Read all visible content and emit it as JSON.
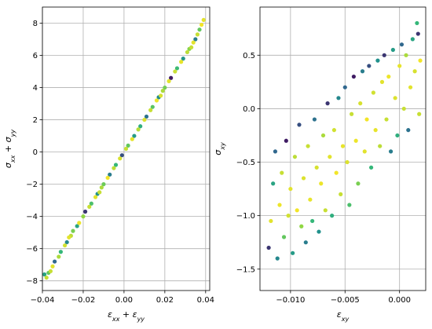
{
  "chart_data": [
    {
      "type": "scatter",
      "title": "",
      "xlabel": "εxx + εyy",
      "ylabel": "σxx + σyy",
      "xlim": [
        -0.04,
        0.042
      ],
      "ylim": [
        -8.6,
        9.0
      ],
      "xticks": [
        -0.04,
        -0.02,
        0.0,
        0.02,
        0.04
      ],
      "xtick_labels": [
        "−0.04",
        "−0.02",
        "0.00",
        "0.02",
        "0.04"
      ],
      "yticks": [
        -8,
        -6,
        -4,
        -2,
        0,
        2,
        4,
        6,
        8
      ],
      "ytick_labels": [
        "−8",
        "−6",
        "−4",
        "−2",
        "0",
        "2",
        "4",
        "6",
        "8"
      ],
      "grid": true,
      "color_scale": [
        "#440154",
        "#31688e",
        "#21918c",
        "#35b779",
        "#90d743",
        "#fde725"
      ],
      "points": [
        [
          -0.038,
          -7.8,
          0.9
        ],
        [
          -0.037,
          -7.5,
          0.7
        ],
        [
          -0.035,
          -7.1,
          0.95
        ],
        [
          -0.034,
          -6.8,
          0.2
        ],
        [
          -0.032,
          -6.5,
          0.85
        ],
        [
          -0.031,
          -6.2,
          0.6
        ],
        [
          -0.029,
          -5.8,
          0.92
        ],
        [
          -0.028,
          -5.6,
          0.35
        ],
        [
          -0.026,
          -5.2,
          0.88
        ],
        [
          -0.025,
          -4.9,
          0.75
        ],
        [
          -0.023,
          -4.6,
          0.5
        ],
        [
          -0.022,
          -4.4,
          0.97
        ],
        [
          -0.02,
          -4.0,
          0.8
        ],
        [
          -0.019,
          -3.7,
          0.1
        ],
        [
          -0.017,
          -3.4,
          0.9
        ],
        [
          -0.016,
          -3.2,
          0.65
        ],
        [
          -0.014,
          -2.8,
          0.95
        ],
        [
          -0.013,
          -2.6,
          0.4
        ],
        [
          -0.011,
          -2.2,
          0.85
        ],
        [
          -0.01,
          -2.0,
          0.72
        ],
        [
          -0.008,
          -1.6,
          0.98
        ],
        [
          -0.007,
          -1.4,
          0.3
        ],
        [
          -0.005,
          -1.0,
          0.88
        ],
        [
          -0.004,
          -0.8,
          0.6
        ],
        [
          -0.002,
          -0.4,
          0.93
        ],
        [
          -0.001,
          -0.2,
          0.15
        ],
        [
          0.001,
          0.2,
          0.9
        ],
        [
          0.002,
          0.4,
          0.7
        ],
        [
          0.004,
          0.8,
          0.96
        ],
        [
          0.005,
          1.0,
          0.45
        ],
        [
          0.007,
          1.4,
          0.87
        ],
        [
          0.008,
          1.6,
          0.55
        ],
        [
          0.01,
          2.0,
          0.94
        ],
        [
          0.011,
          2.2,
          0.25
        ],
        [
          0.013,
          2.6,
          0.9
        ],
        [
          0.014,
          2.8,
          0.68
        ],
        [
          0.016,
          3.2,
          0.97
        ],
        [
          0.017,
          3.4,
          0.38
        ],
        [
          0.019,
          3.8,
          0.85
        ],
        [
          0.02,
          4.0,
          0.74
        ],
        [
          0.022,
          4.4,
          0.95
        ],
        [
          0.023,
          4.6,
          0.05
        ],
        [
          0.025,
          5.0,
          0.9
        ],
        [
          0.026,
          5.2,
          0.62
        ],
        [
          0.028,
          5.6,
          0.96
        ],
        [
          0.029,
          5.8,
          0.42
        ],
        [
          0.031,
          6.2,
          0.88
        ],
        [
          0.032,
          6.4,
          0.78
        ],
        [
          0.034,
          6.8,
          0.95
        ],
        [
          0.035,
          7.0,
          0.3
        ],
        [
          0.036,
          7.3,
          0.9
        ],
        [
          0.037,
          7.6,
          0.7
        ],
        [
          0.038,
          7.9,
          0.98
        ],
        [
          0.039,
          8.2,
          0.95
        ],
        [
          -0.039,
          -7.6,
          0.5
        ],
        [
          -0.036,
          -7.4,
          0.9
        ],
        [
          0.033,
          6.5,
          0.9
        ],
        [
          -0.027,
          -5.3,
          0.95
        ],
        [
          0.018,
          3.5,
          0.93
        ],
        [
          -0.012,
          -2.5,
          0.9
        ]
      ]
    },
    {
      "type": "scatter",
      "title": "",
      "xlabel": "εxy",
      "ylabel": "σxy",
      "xlim": [
        -0.0128,
        0.0024
      ],
      "ylim": [
        -1.7,
        0.95
      ],
      "xticks": [
        -0.01,
        -0.005,
        0.0
      ],
      "xtick_labels": [
        "−0.010",
        "−0.005",
        "0.000"
      ],
      "yticks": [
        -1.5,
        -1.0,
        -0.5,
        0.0,
        0.5
      ],
      "ytick_labels": [
        "−1.5",
        "−1.0",
        "−0.5",
        "0.0",
        "0.5"
      ],
      "grid": true,
      "color_scale": [
        "#440154",
        "#31688e",
        "#21918c",
        "#35b779",
        "#90d743",
        "#fde725"
      ],
      "points": [
        [
          -0.012,
          -1.3,
          0.1
        ],
        [
          -0.0118,
          -1.05,
          0.95
        ],
        [
          -0.0116,
          -0.7,
          0.5
        ],
        [
          -0.0114,
          -0.4,
          0.2
        ],
        [
          -0.0112,
          -1.4,
          0.35
        ],
        [
          -0.011,
          -0.9,
          0.97
        ],
        [
          -0.0108,
          -0.6,
          0.9
        ],
        [
          -0.0106,
          -1.2,
          0.7
        ],
        [
          -0.0104,
          -0.3,
          0.05
        ],
        [
          -0.0102,
          -1.0,
          0.92
        ],
        [
          -0.01,
          -0.75,
          0.95
        ],
        [
          -0.0098,
          -1.35,
          0.45
        ],
        [
          -0.0096,
          -0.45,
          0.88
        ],
        [
          -0.0094,
          -0.95,
          0.98
        ],
        [
          -0.0092,
          -0.15,
          0.15
        ],
        [
          -0.009,
          -1.1,
          0.8
        ],
        [
          -0.0088,
          -0.65,
          0.94
        ],
        [
          -0.0086,
          -1.25,
          0.3
        ],
        [
          -0.0084,
          -0.35,
          0.9
        ],
        [
          -0.0082,
          -0.85,
          0.96
        ],
        [
          -0.008,
          -1.05,
          0.6
        ],
        [
          -0.0078,
          -0.1,
          0.25
        ],
        [
          -0.0076,
          -0.55,
          0.93
        ],
        [
          -0.0074,
          -1.15,
          0.4
        ],
        [
          -0.0072,
          -0.7,
          0.97
        ],
        [
          -0.007,
          -0.25,
          0.85
        ],
        [
          -0.0068,
          -0.95,
          0.9
        ],
        [
          -0.0066,
          0.05,
          0.1
        ],
        [
          -0.0064,
          -0.45,
          0.95
        ],
        [
          -0.0062,
          -1.0,
          0.55
        ],
        [
          -0.006,
          -0.2,
          0.92
        ],
        [
          -0.0058,
          -0.6,
          0.98
        ],
        [
          -0.0056,
          0.1,
          0.35
        ],
        [
          -0.0054,
          -0.8,
          0.9
        ],
        [
          -0.0052,
          -0.35,
          0.96
        ],
        [
          -0.005,
          0.2,
          0.2
        ],
        [
          -0.0048,
          -0.5,
          0.94
        ],
        [
          -0.0046,
          -0.9,
          0.65
        ],
        [
          -0.0044,
          -0.05,
          0.9
        ],
        [
          -0.0042,
          0.3,
          0.05
        ],
        [
          -0.004,
          -0.3,
          0.97
        ],
        [
          -0.0038,
          -0.7,
          0.75
        ],
        [
          -0.0036,
          0.05,
          0.93
        ],
        [
          -0.0034,
          0.35,
          0.3
        ],
        [
          -0.0032,
          -0.4,
          0.95
        ],
        [
          -0.003,
          -0.1,
          0.98
        ],
        [
          -0.0028,
          0.4,
          0.15
        ],
        [
          -0.0026,
          -0.55,
          0.6
        ],
        [
          -0.0024,
          0.15,
          0.92
        ],
        [
          -0.0022,
          -0.2,
          0.96
        ],
        [
          -0.002,
          0.45,
          0.4
        ],
        [
          -0.0018,
          -0.35,
          0.88
        ],
        [
          -0.0016,
          0.25,
          0.95
        ],
        [
          -0.0014,
          0.5,
          0.1
        ],
        [
          -0.0012,
          -0.1,
          0.9
        ],
        [
          -0.001,
          0.3,
          0.97
        ],
        [
          -0.0008,
          -0.4,
          0.3
        ],
        [
          -0.0006,
          0.55,
          0.45
        ],
        [
          -0.0004,
          0.1,
          0.94
        ],
        [
          -0.0002,
          -0.25,
          0.55
        ],
        [
          0.0,
          0.4,
          0.96
        ],
        [
          0.0002,
          0.6,
          0.2
        ],
        [
          0.0004,
          0.0,
          0.9
        ],
        [
          0.0006,
          0.5,
          0.85
        ],
        [
          0.0008,
          -0.2,
          0.25
        ],
        [
          0.001,
          0.2,
          0.95
        ],
        [
          0.0012,
          0.65,
          0.5
        ],
        [
          0.0014,
          0.35,
          0.93
        ],
        [
          0.0016,
          0.8,
          0.6
        ],
        [
          0.0018,
          -0.05,
          0.9
        ],
        [
          0.0019,
          0.45,
          0.98
        ],
        [
          0.0017,
          0.7,
          0.1
        ]
      ]
    }
  ]
}
